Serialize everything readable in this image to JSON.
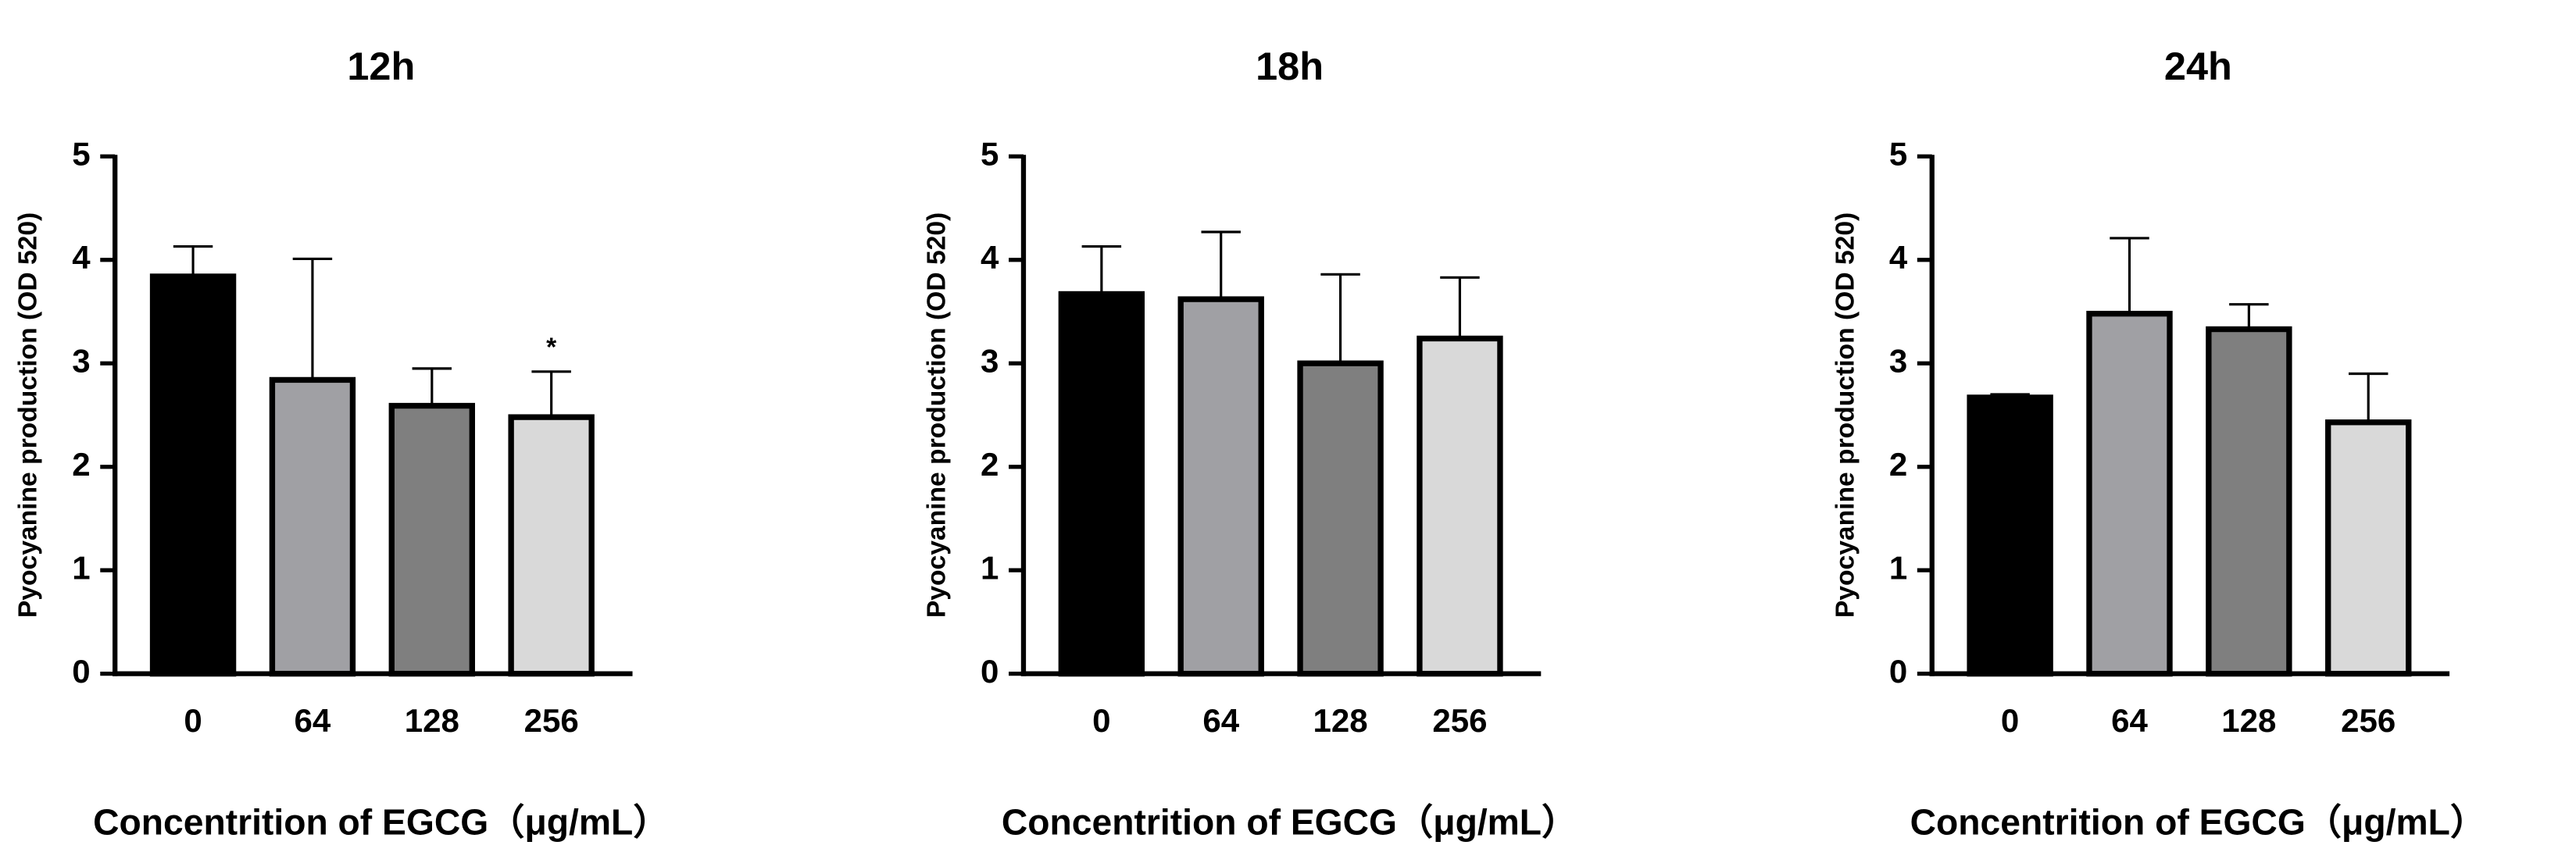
{
  "chart_data": [
    {
      "type": "bar",
      "title": "12h",
      "x_label": "Concentrition of EGCG（μg/mL）",
      "y_label": "Pyocyanine production (OD 520)",
      "categories": [
        "0",
        "64",
        "128",
        "256"
      ],
      "values": [
        3.84,
        2.84,
        2.59,
        2.48
      ],
      "errors": [
        0.29,
        1.17,
        0.36,
        0.44
      ],
      "significance": [
        null,
        null,
        null,
        "*"
      ],
      "colors": [
        "#000000",
        "#a0a0a4",
        "#7f7f7f",
        "#d9d9d9"
      ],
      "ylim": [
        0,
        5
      ],
      "yticks": [
        0,
        1,
        2,
        3,
        4,
        5
      ]
    },
    {
      "type": "bar",
      "title": "18h",
      "x_label": "Concentrition of EGCG（μg/mL）",
      "y_label": "Pyocyanine production (OD 520)",
      "categories": [
        "0",
        "64",
        "128",
        "256"
      ],
      "values": [
        3.67,
        3.62,
        3.0,
        3.24
      ],
      "errors": [
        0.46,
        0.65,
        0.86,
        0.59
      ],
      "colors": [
        "#000000",
        "#a0a0a4",
        "#7f7f7f",
        "#d9d9d9"
      ],
      "ylim": [
        0,
        5
      ],
      "yticks": [
        0,
        1,
        2,
        3,
        4,
        5
      ]
    },
    {
      "type": "bar",
      "title": "24h",
      "x_label": "Concentrition of EGCG（μg/mL）",
      "y_label": "Pyocyanine production (OD 520)",
      "categories": [
        "0",
        "64",
        "128",
        "256"
      ],
      "values": [
        2.67,
        3.48,
        3.33,
        2.43
      ],
      "errors": [
        0.03,
        0.73,
        0.24,
        0.47
      ],
      "colors": [
        "#000000",
        "#a0a0a4",
        "#7f7f7f",
        "#d9d9d9"
      ],
      "ylim": [
        0,
        5
      ],
      "yticks": [
        0,
        1,
        2,
        3,
        4,
        5
      ]
    }
  ]
}
